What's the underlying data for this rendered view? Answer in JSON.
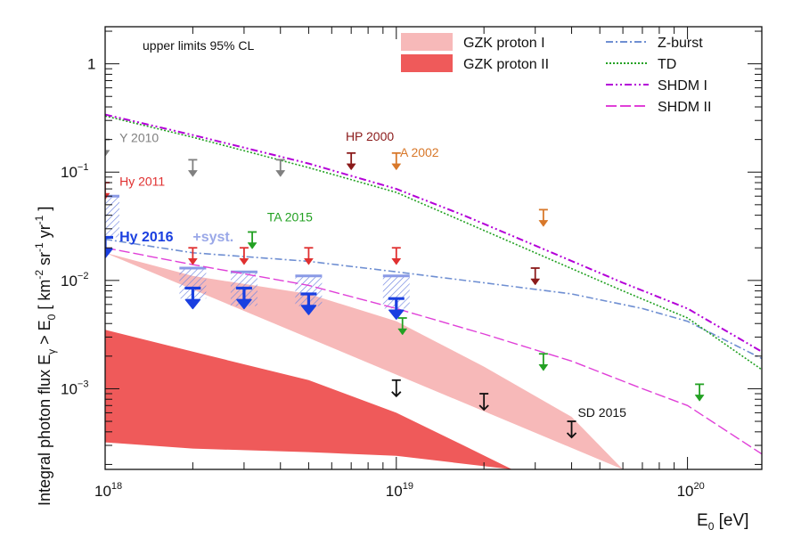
{
  "chart_data": {
    "type": "line",
    "title": "",
    "xlabel": "E",
    "xlabel_sub": "0",
    "xlabel_unit": " [eV]",
    "ylabel_parts": [
      "Integral photon flux E",
      "γ",
      " > E",
      "0",
      " [ km",
      "-2",
      " sr",
      "-1",
      " yr",
      "-1",
      " ]"
    ],
    "x_scale": "log",
    "y_scale": "log",
    "xlim": [
      1e+18,
      1.8e+20
    ],
    "ylim": [
      0.00018,
      2.2
    ],
    "x_ticks": [
      {
        "value": 1e+18,
        "base": "10",
        "exp": "18"
      },
      {
        "value": 1e+19,
        "base": "10",
        "exp": "19"
      },
      {
        "value": 1e+20,
        "base": "10",
        "exp": "20"
      }
    ],
    "y_ticks": [
      {
        "value": 1,
        "base": "1",
        "exp": ""
      },
      {
        "value": 0.1,
        "base": "10",
        "exp": "−1"
      },
      {
        "value": 0.01,
        "base": "10",
        "exp": "−2"
      },
      {
        "value": 0.001,
        "base": "10",
        "exp": "−3"
      }
    ],
    "note": "upper limits 95% CL",
    "legend_position": "top-right",
    "legend": [
      {
        "label": "GZK proton I",
        "kind": "band",
        "color": "#f7b9b9"
      },
      {
        "label": "GZK proton II",
        "kind": "band",
        "color": "#ef5a5a"
      },
      {
        "label": "Z-burst",
        "kind": "line",
        "color": "#6f8fd2",
        "dash": "8 3 2 3"
      },
      {
        "label": "TD",
        "kind": "line",
        "color": "#23a123",
        "dash": "2 2"
      },
      {
        "label": "SHDM I",
        "kind": "line",
        "color": "#b400d8",
        "dash": "8 3 2 3 2 3"
      },
      {
        "label": "SHDM II",
        "kind": "line",
        "color": "#e040d8",
        "dash": "12 4"
      }
    ],
    "bands": [
      {
        "name": "GZK proton I",
        "color": "#f7b9b9",
        "upper": [
          [
            1e+18,
            0.018
          ],
          [
            2e+18,
            0.011
          ],
          [
            5e+18,
            0.0075
          ],
          [
            1e+19,
            0.0042
          ],
          [
            2e+19,
            0.0016
          ],
          [
            4e+19,
            0.00055
          ],
          [
            6e+19,
            0.00018
          ]
        ],
        "lower": [
          [
            1e+18,
            0.00018
          ],
          [
            6e+19,
            0.00018
          ]
        ]
      },
      {
        "name": "GZK proton II",
        "color": "#ef5a5a",
        "upper": [
          [
            1e+18,
            0.0035
          ],
          [
            2e+18,
            0.0022
          ],
          [
            5e+18,
            0.0012
          ],
          [
            1e+19,
            0.0006
          ],
          [
            1.7e+19,
            0.0003
          ],
          [
            2.5e+19,
            0.00018
          ]
        ],
        "lower": [
          [
            2.5e+19,
            0.00018
          ],
          [
            1e+19,
            0.00024
          ],
          [
            5e+18,
            0.00026
          ],
          [
            2e+18,
            0.00028
          ],
          [
            1e+18,
            0.00032
          ]
        ]
      }
    ],
    "series": [
      {
        "name": "Z-burst",
        "color": "#6f8fd2",
        "dash": "8 3 2 3",
        "width": 1.6,
        "points": [
          [
            1e+18,
            0.024
          ],
          [
            2e+18,
            0.018
          ],
          [
            5e+18,
            0.015
          ],
          [
            1e+19,
            0.012
          ],
          [
            2e+19,
            0.0095
          ],
          [
            4e+19,
            0.0075
          ],
          [
            7e+19,
            0.0055
          ],
          [
            1e+20,
            0.0042
          ],
          [
            1.8e+20,
            0.0019
          ]
        ]
      },
      {
        "name": "TD",
        "color": "#23a123",
        "dash": "2 2",
        "width": 1.6,
        "points": [
          [
            1e+18,
            0.33
          ],
          [
            2e+18,
            0.21
          ],
          [
            5e+18,
            0.11
          ],
          [
            1e+19,
            0.065
          ],
          [
            1.7e+19,
            0.035
          ],
          [
            3e+19,
            0.018
          ],
          [
            6e+19,
            0.008
          ],
          [
            1e+20,
            0.0045
          ],
          [
            1.8e+20,
            0.0015
          ]
        ]
      },
      {
        "name": "SHDM I",
        "color": "#b400d8",
        "dash": "8 3 2 3 2 3",
        "width": 2,
        "points": [
          [
            1e+18,
            0.34
          ],
          [
            2e+18,
            0.22
          ],
          [
            5e+18,
            0.12
          ],
          [
            1e+19,
            0.07
          ],
          [
            1.7e+19,
            0.04
          ],
          [
            3e+19,
            0.021
          ],
          [
            6e+19,
            0.0095
          ],
          [
            1e+20,
            0.0055
          ],
          [
            1.8e+20,
            0.0022
          ]
        ]
      },
      {
        "name": "SHDM II",
        "color": "#e040d8",
        "dash": "12 4",
        "width": 1.4,
        "points": [
          [
            1e+18,
            0.02
          ],
          [
            2e+18,
            0.014
          ],
          [
            5e+18,
            0.009
          ],
          [
            1e+19,
            0.0055
          ],
          [
            2e+19,
            0.0032
          ],
          [
            4e+19,
            0.0018
          ],
          [
            7e+19,
            0.001
          ],
          [
            1e+20,
            0.0007
          ],
          [
            1.8e+20,
            0.00025
          ]
        ]
      }
    ],
    "limits": [
      {
        "set": "Y 2010",
        "color": "#808080",
        "bold": false,
        "points": [
          [
            1e+18,
            0.2
          ],
          [
            2e+18,
            0.13
          ],
          [
            4e+18,
            0.13
          ]
        ]
      },
      {
        "set": "HP 2000",
        "color": "#8b1a1a",
        "bold": false,
        "points": [
          [
            7e+18,
            0.15
          ],
          [
            3e+19,
            0.013
          ]
        ]
      },
      {
        "set": "A 2002",
        "color": "#d8782a",
        "bold": false,
        "points": [
          [
            1e+19,
            0.15
          ],
          [
            3.2e+19,
            0.045
          ]
        ]
      },
      {
        "set": "Hy 2011",
        "color": "#e03030",
        "bold": false,
        "points": [
          [
            1e+18,
            0.08
          ],
          [
            2e+18,
            0.02
          ],
          [
            3e+18,
            0.02
          ],
          [
            5e+18,
            0.02
          ],
          [
            1e+19,
            0.02
          ]
        ]
      },
      {
        "set": "TA 2015",
        "color": "#23a123",
        "bold": false,
        "points": [
          [
            3.2e+18,
            0.028
          ],
          [
            1.05e+19,
            0.0045
          ],
          [
            3.2e+19,
            0.0021
          ],
          [
            1.1e+20,
            0.0011
          ]
        ]
      },
      {
        "set": "Hy 2016",
        "color": "#1a3fe0",
        "bold": true,
        "points": [
          [
            1e+18,
            0.025
          ],
          [
            2e+18,
            0.0085
          ],
          [
            3e+18,
            0.0085
          ],
          [
            5e+18,
            0.0075
          ],
          [
            1e+19,
            0.0068
          ]
        ]
      },
      {
        "set": "SD 2015",
        "color": "#111111",
        "bold": false,
        "open": true,
        "points": [
          [
            1e+19,
            0.0012
          ],
          [
            2e+19,
            0.0009
          ],
          [
            4e+19,
            0.0005
          ]
        ]
      }
    ],
    "syst_boxes": [
      {
        "x": 1e+18,
        "lo": 0.025,
        "hi": 0.06
      },
      {
        "x": 2e+18,
        "lo": 0.0068,
        "hi": 0.013
      },
      {
        "x": 3e+18,
        "lo": 0.0058,
        "hi": 0.012
      },
      {
        "x": 5e+18,
        "lo": 0.0058,
        "hi": 0.011
      },
      {
        "x": 1e+19,
        "lo": 0.0055,
        "hi": 0.011
      }
    ],
    "annotations": [
      {
        "text": "Y 2010",
        "color": "#808080",
        "x": 1.12e+18,
        "y": 0.19,
        "bold": false
      },
      {
        "text": "HP 2000",
        "color": "#8b1a1a",
        "x": 6.7e+18,
        "y": 0.195,
        "bold": false
      },
      {
        "text": "A 2002",
        "color": "#d8782a",
        "x": 1.03e+19,
        "y": 0.138,
        "bold": false
      },
      {
        "text": "Hy 2011",
        "color": "#e03030",
        "x": 1.12e+18,
        "y": 0.075,
        "bold": false
      },
      {
        "text": "TA 2015",
        "color": "#23a123",
        "x": 3.6e+18,
        "y": 0.035,
        "bold": false
      },
      {
        "text": "Hy 2016",
        "color": "#1a3fe0",
        "x": 1.12e+18,
        "y": 0.023,
        "bold": true
      },
      {
        "text": "+syst.",
        "color": "#9aa8e8",
        "x": 2e+18,
        "y": 0.023,
        "bold": true
      },
      {
        "text": "SD 2015",
        "color": "#111111",
        "x": 4.2e+19,
        "y": 0.00055,
        "bold": false
      }
    ]
  }
}
